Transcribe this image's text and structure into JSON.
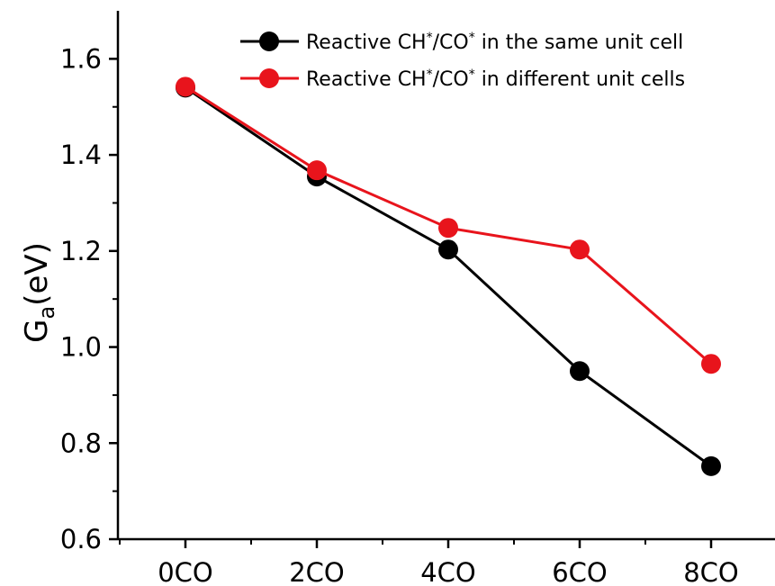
{
  "chart_data": {
    "type": "line",
    "title": "",
    "xlabel": "",
    "ylabel": {
      "main": "G",
      "sub": "a",
      "rest": "(eV)"
    },
    "categories": [
      "0CO",
      "2CO",
      "4CO",
      "6CO",
      "8CO"
    ],
    "ylim": [
      0.6,
      1.7
    ],
    "yticks": [
      "0.6",
      "0.8",
      "1.0",
      "1.2",
      "1.4",
      "1.6"
    ],
    "series": [
      {
        "name": "Reactive CH*/CO* in the same unit cell",
        "name_parts": [
          "Reactive CH",
          "*",
          "/CO",
          "*",
          " in the same unit cell"
        ],
        "color": "#000000",
        "values": [
          1.54,
          1.355,
          1.203,
          0.95,
          0.752
        ]
      },
      {
        "name": "Reactive CH*/CO* in different unit cells",
        "name_parts": [
          "Reactive CH",
          "*",
          "/CO",
          "*",
          " in different unit cells"
        ],
        "color": "#e8141c",
        "values": [
          1.542,
          1.368,
          1.248,
          1.203,
          0.965
        ]
      }
    ],
    "legend_position": "top-right",
    "grid": false
  }
}
